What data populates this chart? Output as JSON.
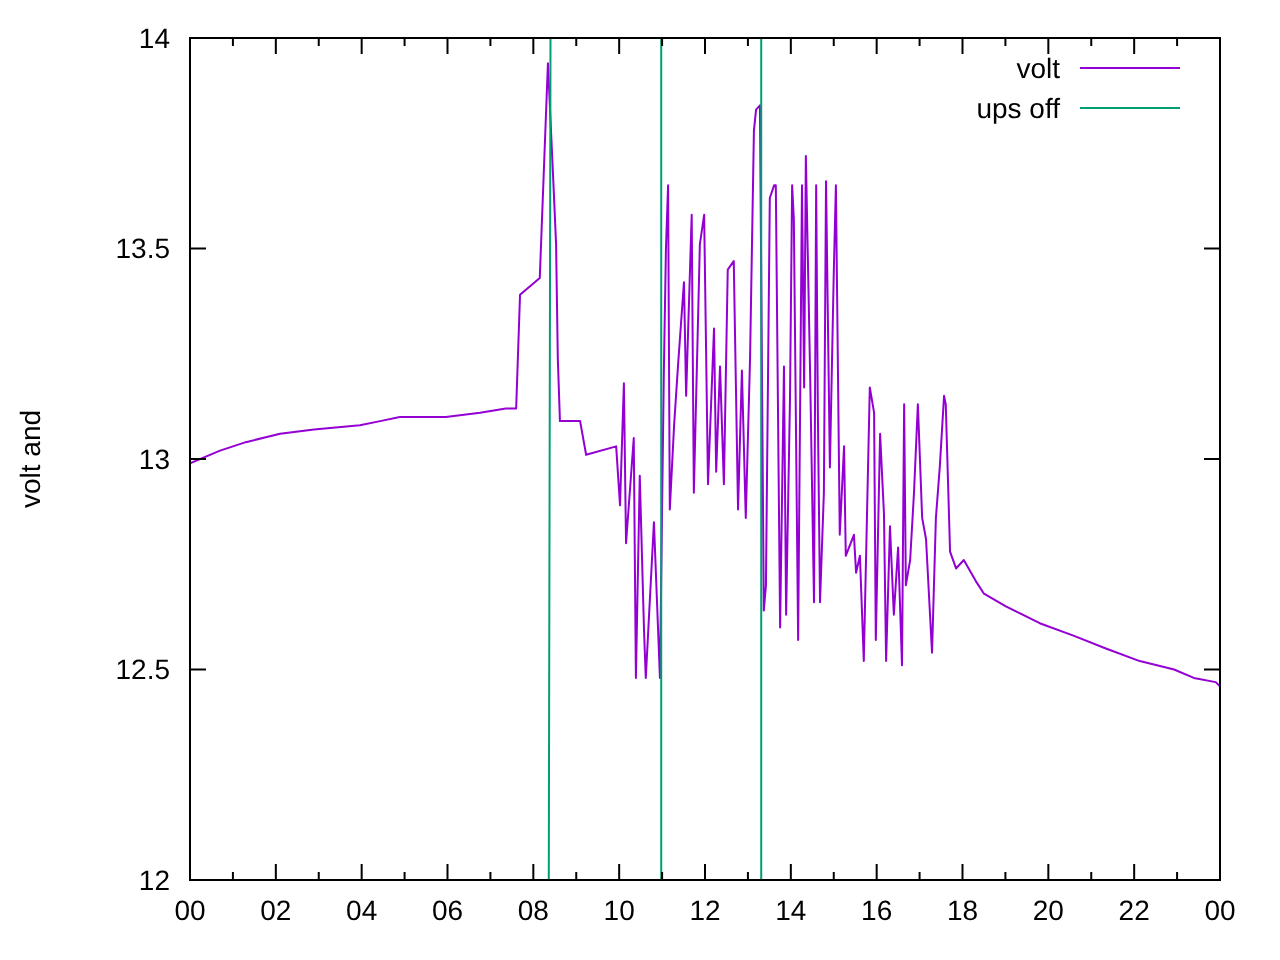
{
  "chart_data": {
    "type": "line",
    "ylabel": "volt and",
    "xlim": [
      0,
      24
    ],
    "ylim": [
      12,
      14
    ],
    "xticks": [
      {
        "value": 0,
        "label": "00"
      },
      {
        "value": 1,
        "label": null
      },
      {
        "value": 2,
        "label": "02"
      },
      {
        "value": 3,
        "label": null
      },
      {
        "value": 4,
        "label": "04"
      },
      {
        "value": 5,
        "label": null
      },
      {
        "value": 6,
        "label": "06"
      },
      {
        "value": 7,
        "label": null
      },
      {
        "value": 8,
        "label": "08"
      },
      {
        "value": 9,
        "label": null
      },
      {
        "value": 10,
        "label": "10"
      },
      {
        "value": 11,
        "label": null
      },
      {
        "value": 12,
        "label": "12"
      },
      {
        "value": 13,
        "label": null
      },
      {
        "value": 14,
        "label": "14"
      },
      {
        "value": 15,
        "label": null
      },
      {
        "value": 16,
        "label": "16"
      },
      {
        "value": 17,
        "label": null
      },
      {
        "value": 18,
        "label": "18"
      },
      {
        "value": 19,
        "label": null
      },
      {
        "value": 20,
        "label": "20"
      },
      {
        "value": 21,
        "label": null
      },
      {
        "value": 22,
        "label": "22"
      },
      {
        "value": 23,
        "label": null
      },
      {
        "value": 24,
        "label": "00"
      }
    ],
    "yticks": [
      12,
      12.5,
      13,
      13.5,
      14
    ],
    "legend": "top right",
    "grid": false,
    "marker": "none",
    "line_style": "solid",
    "series": [
      {
        "name": "volt",
        "color": "#9400d3",
        "x": [
          0,
          0.7,
          1.3,
          2.1,
          2.89,
          3.96,
          4.43,
          4.89,
          5.96,
          6.76,
          7.36,
          7.6,
          7.69,
          8.15,
          8.34,
          8.47,
          8.53,
          8.57,
          8.62,
          9.09,
          9.23,
          9.93,
          10.02,
          10.11,
          10.16,
          10.34,
          10.39,
          10.48,
          10.58,
          10.62,
          10.81,
          10.95,
          11.04,
          11.09,
          11.14,
          11.18,
          11.28,
          11.37,
          11.51,
          11.56,
          11.69,
          11.74,
          11.88,
          11.98,
          12.07,
          12.21,
          12.26,
          12.35,
          12.44,
          12.53,
          12.67,
          12.77,
          12.86,
          12.95,
          13.05,
          13.14,
          13.19,
          13.28,
          13.37,
          13.42,
          13.51,
          13.61,
          13.65,
          13.75,
          13.84,
          13.89,
          13.98,
          14.03,
          14.07,
          14.17,
          14.26,
          14.31,
          14.35,
          14.45,
          14.54,
          14.59,
          14.63,
          14.68,
          14.77,
          14.82,
          14.86,
          14.91,
          15,
          15.05,
          15.14,
          15.24,
          15.28,
          15.47,
          15.52,
          15.61,
          15.7,
          15.84,
          15.94,
          15.98,
          16.08,
          16.17,
          16.22,
          16.31,
          16.4,
          16.5,
          16.59,
          16.64,
          16.68,
          16.78,
          16.87,
          16.96,
          17.06,
          17.15,
          17.29,
          17.38,
          17.47,
          17.57,
          17.61,
          17.71,
          17.85,
          18.03,
          18.31,
          18.5,
          19.01,
          19.8,
          20.6,
          21.34,
          22.13,
          22.93,
          23.39,
          23.9,
          24
        ],
        "values": [
          12.99,
          13.02,
          13.04,
          13.06,
          13.07,
          13.08,
          13.09,
          13.1,
          13.1,
          13.11,
          13.12,
          13.12,
          13.39,
          13.43,
          13.94,
          13.65,
          13.51,
          13.24,
          13.09,
          13.09,
          13.01,
          13.03,
          12.89,
          13.18,
          12.8,
          13.05,
          12.48,
          12.96,
          12.59,
          12.48,
          12.85,
          12.48,
          13.2,
          13.5,
          13.65,
          12.88,
          13.08,
          13.22,
          13.42,
          13.15,
          13.58,
          12.92,
          13.51,
          13.58,
          12.94,
          13.31,
          12.97,
          13.22,
          12.94,
          13.45,
          13.47,
          12.88,
          13.21,
          12.86,
          13.24,
          13.78,
          13.83,
          13.84,
          12.64,
          12.7,
          13.62,
          13.65,
          13.65,
          12.6,
          13.22,
          12.63,
          13.14,
          13.65,
          13.57,
          12.57,
          13.65,
          13.17,
          13.72,
          13.2,
          12.66,
          13.65,
          13.11,
          12.66,
          12.92,
          13.66,
          13.36,
          12.98,
          13.44,
          13.65,
          12.82,
          13.03,
          12.77,
          12.82,
          12.73,
          12.77,
          12.52,
          13.17,
          13.11,
          12.57,
          13.06,
          12.87,
          12.52,
          12.84,
          12.63,
          12.79,
          12.51,
          13.13,
          12.7,
          12.76,
          12.92,
          13.13,
          12.86,
          12.81,
          12.54,
          12.86,
          12.98,
          13.15,
          13.13,
          12.78,
          12.74,
          12.76,
          12.71,
          12.68,
          12.65,
          12.61,
          12.58,
          12.55,
          12.52,
          12.5,
          12.48,
          12.47,
          12.46
        ]
      },
      {
        "name": "ups off",
        "color": "#009e73",
        "x": [
          8.36,
          8.4,
          9,
          10.98,
          10.98,
          12,
          13.31,
          13.31
        ],
        "values": [
          12,
          14,
          null,
          14,
          12,
          null,
          12,
          14
        ]
      }
    ]
  }
}
